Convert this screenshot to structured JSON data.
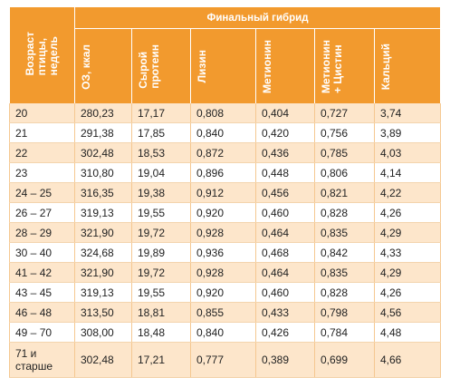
{
  "table": {
    "group_header": "Финальный гибрид",
    "columns": [
      [
        "Возраст",
        "птицы,",
        "недель"
      ],
      [
        "ОЗ, ккал"
      ],
      [
        "Сырой",
        "протеин"
      ],
      [
        "Лизин"
      ],
      [
        "Метионин"
      ],
      [
        "Метионин",
        "+ Цистин"
      ],
      [
        "Кальций"
      ]
    ],
    "rows": [
      [
        "20",
        "280,23",
        "17,17",
        "0,808",
        "0,404",
        "0,727",
        "3,74"
      ],
      [
        "21",
        "291,38",
        "17,85",
        "0,840",
        "0,420",
        "0,756",
        "3,89"
      ],
      [
        "22",
        "302,48",
        "18,53",
        "0,872",
        "0,436",
        "0,785",
        "4,03"
      ],
      [
        "23",
        "310,80",
        "19,04",
        "0,896",
        "0,448",
        "0,806",
        "4,14"
      ],
      [
        "24 – 25",
        "316,35",
        "19,38",
        "0,912",
        "0,456",
        "0,821",
        "4,22"
      ],
      [
        "26 – 27",
        "319,13",
        "19,55",
        "0,920",
        "0,460",
        "0,828",
        "4,26"
      ],
      [
        "28 – 29",
        "321,90",
        "19,72",
        "0,928",
        "0,464",
        "0,835",
        "4,29"
      ],
      [
        "30 – 40",
        "324,68",
        "19,89",
        "0,936",
        "0,468",
        "0,842",
        "4,33"
      ],
      [
        "41 – 42",
        "321,90",
        "19,72",
        "0,928",
        "0,464",
        "0,835",
        "4,29"
      ],
      [
        "43 – 45",
        "319,13",
        "19,55",
        "0,920",
        "0,460",
        "0,828",
        "4,26"
      ],
      [
        "46 – 48",
        "313,50",
        "18,81",
        "0,855",
        "0,433",
        "0,798",
        "4,56"
      ],
      [
        "49 – 70",
        "308,00",
        "18,48",
        "0,840",
        "0,426",
        "0,784",
        "4,48"
      ],
      [
        "71 и старше",
        "302,48",
        "17,21",
        "0,777",
        "0,389",
        "0,699",
        "4,66"
      ]
    ]
  }
}
